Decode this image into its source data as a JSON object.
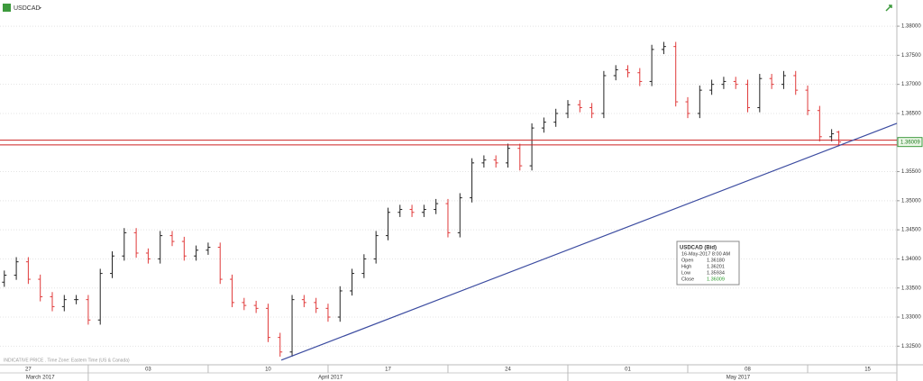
{
  "chart_data": {
    "type": "ohlc",
    "symbol": "USDCAD",
    "footnote": "INDICATIVE PRICE . Time Zone: Eastern Time (US & Canada)",
    "up_color": "#222222",
    "down_color": "#e03a3a",
    "x": [
      1.5,
      2,
      2.5,
      3,
      3.5,
      4,
      4.5,
      5,
      5.5,
      6,
      6.5,
      7,
      7.5,
      8,
      8.5,
      9,
      9.5,
      10,
      10.5,
      11,
      11.5,
      12,
      12.5,
      13,
      13.5,
      14,
      14.5,
      15,
      15.5,
      16,
      16.5,
      17,
      17.5,
      18,
      18.5,
      19,
      19.5,
      20,
      20.5,
      21,
      21.5,
      22,
      22.5,
      23,
      23.5,
      24,
      24.5,
      25,
      25.5,
      26,
      26.5,
      27,
      27.5,
      28,
      28.5,
      29,
      29.5,
      30,
      30.5,
      31,
      31.5,
      32,
      32.5,
      33,
      33.5,
      34,
      34.5,
      35,
      35.5,
      36,
      36.3
    ],
    "open": [
      1.336,
      1.3372,
      1.3395,
      1.3365,
      1.3335,
      1.3318,
      1.333,
      1.333,
      1.3295,
      1.3375,
      1.3405,
      1.3445,
      1.341,
      1.34,
      1.344,
      1.343,
      1.3405,
      1.3415,
      1.342,
      1.3365,
      1.3325,
      1.332,
      1.3315,
      1.3265,
      1.324,
      1.333,
      1.3325,
      1.3315,
      1.33,
      1.3345,
      1.3375,
      1.34,
      1.344,
      1.348,
      1.3485,
      1.348,
      1.3485,
      1.3495,
      1.3445,
      1.3505,
      1.3565,
      1.357,
      1.3565,
      1.359,
      1.356,
      1.3625,
      1.3635,
      1.365,
      1.3665,
      1.366,
      1.365,
      1.3715,
      1.3725,
      1.372,
      1.3705,
      1.376,
      1.3765,
      1.367,
      1.365,
      1.369,
      1.37,
      1.3705,
      1.37,
      1.366,
      1.371,
      1.37,
      1.3715,
      1.369,
      1.3655,
      1.361,
      1.3618
    ],
    "high": [
      1.338,
      1.3403,
      1.3403,
      1.3373,
      1.3343,
      1.3338,
      1.3338,
      1.3338,
      1.3383,
      1.3413,
      1.3453,
      1.3453,
      1.3418,
      1.3448,
      1.3448,
      1.3438,
      1.3423,
      1.3428,
      1.3428,
      1.3373,
      1.3333,
      1.3328,
      1.3323,
      1.3273,
      1.3338,
      1.3338,
      1.3333,
      1.3323,
      1.3353,
      1.3383,
      1.3408,
      1.3448,
      1.3488,
      1.3493,
      1.3493,
      1.3493,
      1.3503,
      1.3503,
      1.3513,
      1.3573,
      1.3578,
      1.3578,
      1.3598,
      1.3598,
      1.3633,
      1.3643,
      1.3658,
      1.3673,
      1.3673,
      1.3668,
      1.3723,
      1.3733,
      1.3733,
      1.3728,
      1.3768,
      1.3773,
      1.3773,
      1.3678,
      1.3698,
      1.3708,
      1.3713,
      1.3713,
      1.3708,
      1.3718,
      1.3718,
      1.3723,
      1.3723,
      1.3698,
      1.3663,
      1.3623,
      1.36201
    ],
    "low": [
      1.3352,
      1.3364,
      1.3357,
      1.3327,
      1.331,
      1.331,
      1.3322,
      1.3287,
      1.3287,
      1.3367,
      1.3397,
      1.3402,
      1.3392,
      1.3392,
      1.3422,
      1.3397,
      1.3397,
      1.3407,
      1.3357,
      1.3317,
      1.3312,
      1.3307,
      1.3257,
      1.3232,
      1.3232,
      1.3317,
      1.3307,
      1.3292,
      1.3292,
      1.3337,
      1.3367,
      1.3392,
      1.3432,
      1.3472,
      1.3472,
      1.3472,
      1.3477,
      1.3437,
      1.3437,
      1.3497,
      1.3557,
      1.3557,
      1.3557,
      1.3552,
      1.3552,
      1.3617,
      1.3627,
      1.3642,
      1.3652,
      1.3642,
      1.3642,
      1.3707,
      1.3712,
      1.3697,
      1.3697,
      1.3752,
      1.3662,
      1.3642,
      1.3642,
      1.3682,
      1.3692,
      1.3692,
      1.3652,
      1.3652,
      1.3692,
      1.3692,
      1.3682,
      1.3647,
      1.3602,
      1.3602,
      1.35934
    ],
    "close": [
      1.3372,
      1.3395,
      1.3365,
      1.3335,
      1.3318,
      1.333,
      1.333,
      1.3295,
      1.3375,
      1.3405,
      1.3445,
      1.341,
      1.34,
      1.344,
      1.343,
      1.3405,
      1.3415,
      1.342,
      1.3365,
      1.3325,
      1.332,
      1.3315,
      1.3265,
      1.324,
      1.333,
      1.3325,
      1.3315,
      1.33,
      1.3345,
      1.3375,
      1.34,
      1.344,
      1.348,
      1.3485,
      1.348,
      1.3485,
      1.3495,
      1.3445,
      1.3505,
      1.3565,
      1.357,
      1.3565,
      1.359,
      1.356,
      1.3625,
      1.3635,
      1.365,
      1.3665,
      1.366,
      1.365,
      1.3715,
      1.3725,
      1.372,
      1.3705,
      1.376,
      1.3765,
      1.367,
      1.365,
      1.369,
      1.37,
      1.3705,
      1.37,
      1.366,
      1.371,
      1.37,
      1.3715,
      1.369,
      1.3655,
      1.361,
      1.3615,
      1.36009
    ],
    "xlim": [
      1.32,
      38.72
    ],
    "ylim": [
      1.3218,
      1.3845
    ],
    "yticks": [
      {
        "value": 1.325,
        "label": "1.32500"
      },
      {
        "value": 1.33,
        "label": "1.33000"
      },
      {
        "value": 1.335,
        "label": "1.33500"
      },
      {
        "value": 1.34,
        "label": "1.34000"
      },
      {
        "value": 1.345,
        "label": "1.34500"
      },
      {
        "value": 1.35,
        "label": "1.35000"
      },
      {
        "value": 1.355,
        "label": "1.35500"
      },
      {
        "value": 1.365,
        "label": "1.36500"
      },
      {
        "value": 1.37,
        "label": "1.37000"
      },
      {
        "value": 1.375,
        "label": "1.37500"
      },
      {
        "value": 1.38,
        "label": "1.38000"
      }
    ],
    "xticks": [
      {
        "value": 2.5,
        "label": "27"
      },
      {
        "value": 7.5,
        "label": "03"
      },
      {
        "value": 12.5,
        "label": "10"
      },
      {
        "value": 17.5,
        "label": "17"
      },
      {
        "value": 22.5,
        "label": "24"
      },
      {
        "value": 27.5,
        "label": "01"
      },
      {
        "value": 32.5,
        "label": "08"
      },
      {
        "value": 37.5,
        "label": "15"
      }
    ],
    "week_bounds": [
      5,
      10,
      15,
      20,
      25,
      30,
      35
    ],
    "month_ticks": [
      {
        "value": 3,
        "label": "March 2017"
      },
      {
        "value": 15.1,
        "label": "April 2017"
      },
      {
        "value": 32.1,
        "label": "May 2017"
      }
    ],
    "month_bounds": [
      5,
      25
    ],
    "grid": true,
    "trendline": {
      "x": [
        13.05,
        38.72
      ],
      "y": [
        1.3226,
        1.3633
      ],
      "color": "#3b4ba0"
    },
    "hlines": {
      "values": [
        1.3604,
        1.3596
      ],
      "color": "#cc2222"
    },
    "tooltip": {
      "title": "USDCAD (Bid)",
      "time": "16-May-2017 8:00 AM",
      "rows": [
        [
          "Open",
          "1.36180"
        ],
        [
          "High",
          "1.36201"
        ],
        [
          "Low",
          "1.35934"
        ],
        [
          "Close",
          "1.36009"
        ]
      ]
    }
  }
}
